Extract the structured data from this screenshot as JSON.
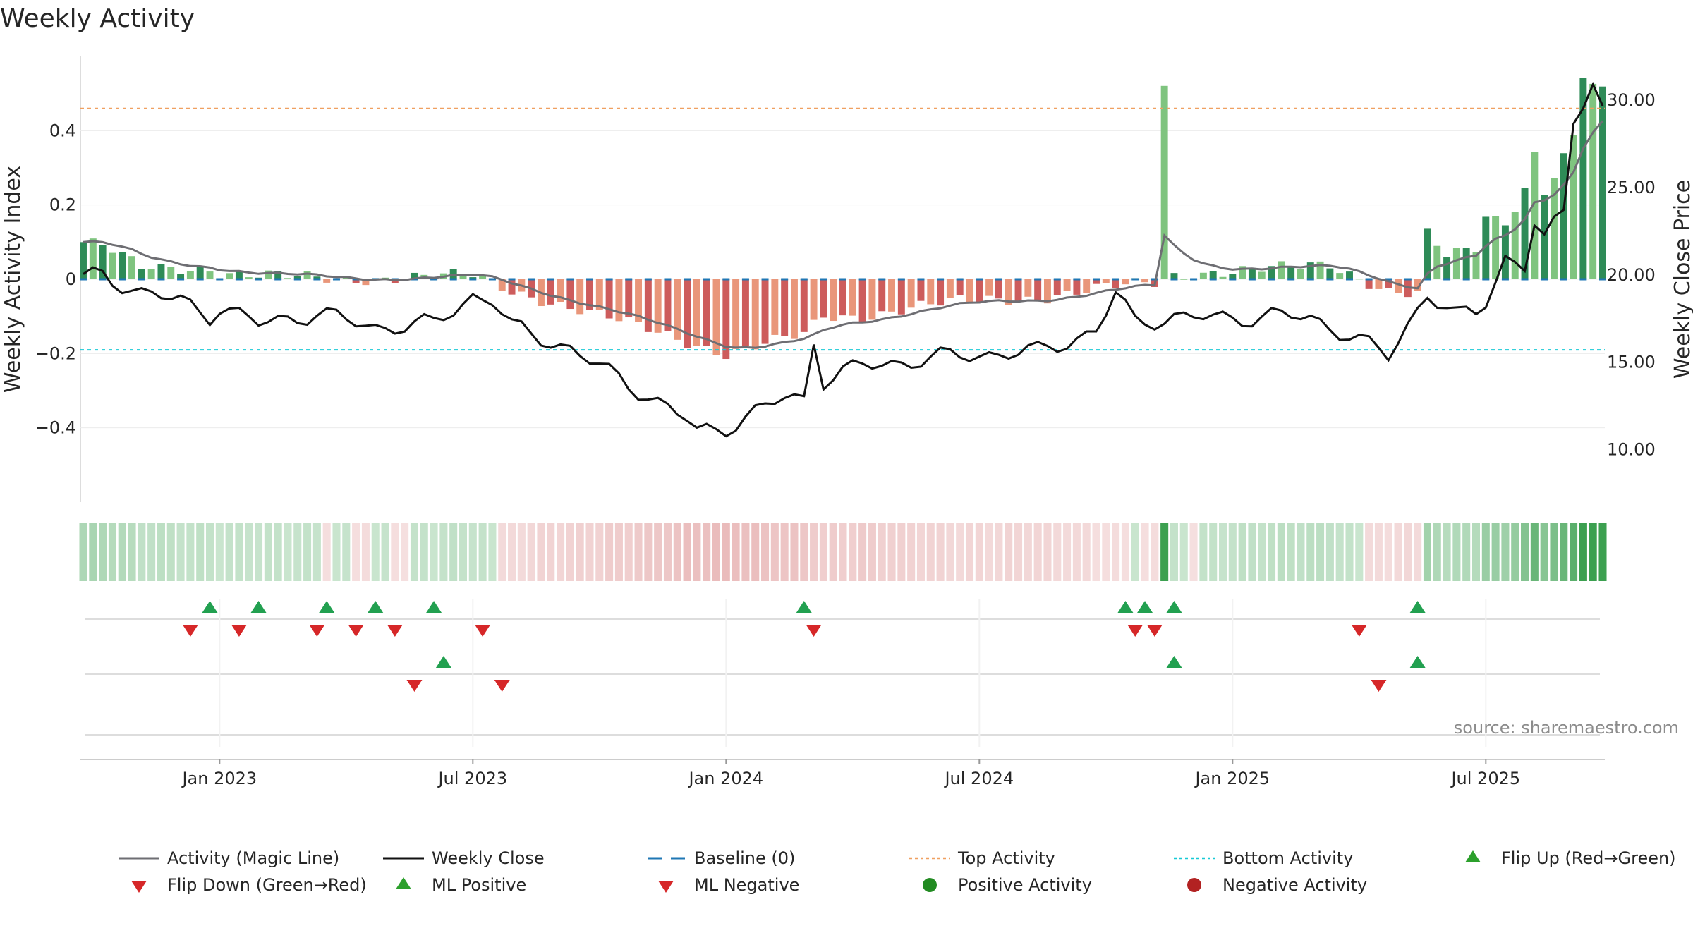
{
  "chart_data": {
    "type": "bar",
    "title": "Weekly Activity",
    "ylabel_left": "Weekly Activity Index",
    "ylabel_right": "Weekly Close Price",
    "ylim_left": [
      -0.6,
      0.6
    ],
    "ylim_right": [
      7.0,
      32.5
    ],
    "left_ticks": [
      0.4,
      0.2,
      0,
      -0.2,
      -0.4
    ],
    "left_tick_labels": [
      "0.4",
      "0.2",
      "0",
      "−0.2",
      "−0.4"
    ],
    "right_ticks": [
      30,
      25,
      20,
      15,
      10
    ],
    "right_tick_labels": [
      "30.00",
      "25.00",
      "20.00",
      "15.00",
      "10.00"
    ],
    "x_tick_labels": [
      "Jan 2023",
      "Jul 2023",
      "Jan 2024",
      "Jul 2024",
      "Jan 2025",
      "Jul 2025"
    ],
    "x_tick_weeks": [
      14,
      40,
      66,
      92,
      118,
      144
    ],
    "week_count": 157,
    "reference_lines": {
      "top_activity": 0.46,
      "bottom_activity": -0.19,
      "baseline": 0
    },
    "activity_anchors": [
      [
        0,
        0.1
      ],
      [
        2,
        0.09
      ],
      [
        6,
        0.03
      ],
      [
        13,
        0.03
      ],
      [
        14,
        0.02
      ],
      [
        18,
        0.01
      ],
      [
        26,
        0.0
      ],
      [
        40,
        0.01
      ],
      [
        44,
        -0.03
      ],
      [
        52,
        -0.09
      ],
      [
        60,
        -0.15
      ],
      [
        66,
        -0.2
      ],
      [
        74,
        -0.15
      ],
      [
        76,
        -0.1
      ],
      [
        80,
        -0.1
      ],
      [
        84,
        -0.08
      ],
      [
        90,
        -0.06
      ],
      [
        98,
        -0.05
      ],
      [
        106,
        -0.02
      ],
      [
        110,
        -0.01
      ],
      [
        111,
        0.52
      ],
      [
        112,
        0.01
      ],
      [
        116,
        0.02
      ],
      [
        124,
        0.03
      ],
      [
        128,
        0.04
      ],
      [
        134,
        -0.03
      ],
      [
        137,
        -0.04
      ],
      [
        138,
        0.12
      ],
      [
        140,
        0.06
      ],
      [
        143,
        0.08
      ],
      [
        144,
        0.17
      ],
      [
        146,
        0.15
      ],
      [
        148,
        0.25
      ],
      [
        149,
        0.34
      ],
      [
        150,
        0.24
      ],
      [
        153,
        0.38
      ],
      [
        154,
        0.55
      ],
      [
        156,
        0.5
      ]
    ],
    "close_anchors": [
      [
        0,
        19.8
      ],
      [
        2,
        20.0
      ],
      [
        6,
        19.0
      ],
      [
        10,
        18.5
      ],
      [
        13,
        17.7
      ],
      [
        14,
        18.2
      ],
      [
        18,
        17.2
      ],
      [
        24,
        17.8
      ],
      [
        30,
        17.0
      ],
      [
        36,
        17.2
      ],
      [
        38,
        18.0
      ],
      [
        40,
        18.8
      ],
      [
        42,
        18.6
      ],
      [
        44,
        17.0
      ],
      [
        50,
        15.8
      ],
      [
        54,
        14.4
      ],
      [
        58,
        13.1
      ],
      [
        62,
        11.7
      ],
      [
        63,
        11.0
      ],
      [
        66,
        11.3
      ],
      [
        70,
        12.4
      ],
      [
        72,
        13.0
      ],
      [
        74,
        12.9
      ],
      [
        75,
        16.3
      ],
      [
        76,
        14.0
      ],
      [
        80,
        14.8
      ],
      [
        84,
        15.0
      ],
      [
        90,
        15.4
      ],
      [
        98,
        15.6
      ],
      [
        104,
        16.8
      ],
      [
        106,
        18.9
      ],
      [
        108,
        17.3
      ],
      [
        112,
        17.6
      ],
      [
        118,
        17.5
      ],
      [
        122,
        17.7
      ],
      [
        126,
        17.5
      ],
      [
        130,
        16.6
      ],
      [
        134,
        15.3
      ],
      [
        138,
        19.0
      ],
      [
        141,
        17.6
      ],
      [
        143,
        17.8
      ],
      [
        144,
        18.5
      ],
      [
        146,
        21.0
      ],
      [
        148,
        20.5
      ],
      [
        149,
        23.0
      ],
      [
        150,
        22.0
      ],
      [
        152,
        23.5
      ],
      [
        153,
        29.0
      ],
      [
        154,
        30.0
      ],
      [
        155,
        31.0
      ],
      [
        156,
        29.5
      ]
    ],
    "flip_up_weeks": [
      13,
      18,
      25,
      30,
      36,
      74,
      107,
      109,
      112,
      137
    ],
    "flip_down_weeks": [
      11,
      16,
      24,
      28,
      32,
      41,
      75,
      108,
      110,
      131
    ],
    "ml_positive_weeks": [
      37,
      112,
      137
    ],
    "ml_negative_weeks": [
      34,
      43,
      133
    ],
    "source": "source: sharemaestro.com",
    "legend": [
      {
        "label": "Activity (Magic Line)",
        "color": "#6e6e73"
      },
      {
        "label": "Weekly Close",
        "color": "#111111"
      },
      {
        "label": "Baseline (0)",
        "color": "#1f77b4"
      },
      {
        "label": "Top Activity",
        "color": "#f0a060"
      },
      {
        "label": "Bottom Activity",
        "color": "#17c9d6"
      },
      {
        "label": "Flip Up (Red→Green)",
        "color": "#2ca02c"
      },
      {
        "label": "Flip Down (Green→Red)",
        "color": "#d62728"
      },
      {
        "label": "ML Positive",
        "color": "#2ca02c"
      },
      {
        "label": "ML Negative",
        "color": "#d62728"
      },
      {
        "label": "Positive Activity",
        "color": "#228b22"
      },
      {
        "label": "Negative Activity",
        "color": "#b22222"
      }
    ]
  }
}
